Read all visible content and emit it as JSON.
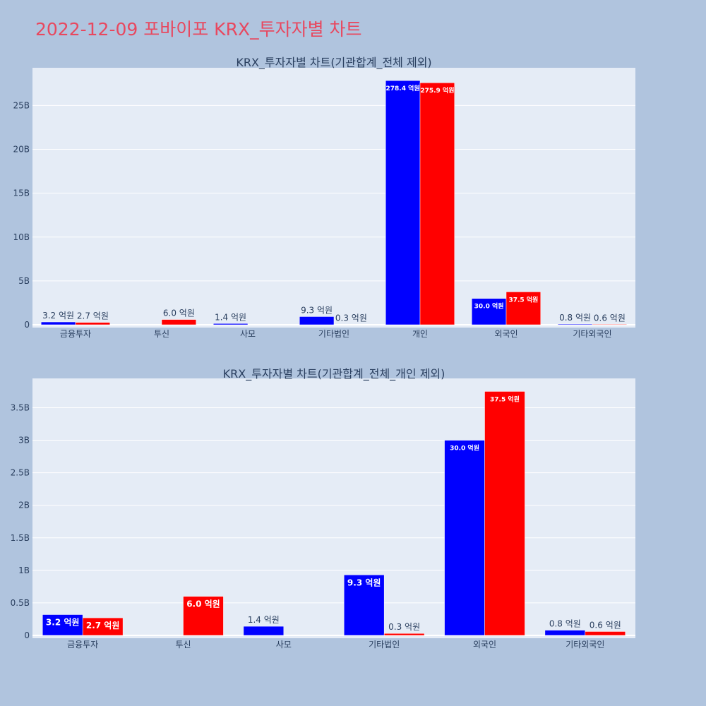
{
  "page": {
    "title": "2022-12-09 포바이포 KRX_투자자별 차트"
  },
  "colors": {
    "background": "#b0c4de",
    "plot_bg": "#e5ecf6",
    "title": "#e8485f",
    "series_a": "#0000ff",
    "series_b": "#ff0000"
  },
  "chart_data": [
    {
      "type": "bar",
      "title": "KRX_투자자별 차트(기관합계_전체 제외)",
      "categories": [
        "금융투자",
        "투신",
        "사모",
        "기타법인",
        "개인",
        "외국인",
        "기타외국인"
      ],
      "series": [
        {
          "color": "#0000ff",
          "values": [
            320000000,
            0,
            140000000,
            930000000,
            27840000000,
            3000000000,
            80000000
          ],
          "labels": [
            "3.2 억원",
            "",
            "1.4 억원",
            "9.3 억원",
            "278.4 억원",
            "30.0 억원",
            "0.8 억원"
          ]
        },
        {
          "color": "#ff0000",
          "values": [
            270000000,
            600000000,
            0,
            30000000,
            27590000000,
            3750000000,
            60000000
          ],
          "labels": [
            "2.7 억원",
            "6.0 억원",
            "",
            "0.3 억원",
            "275.9 억원",
            "37.5 억원",
            "0.6 억원"
          ]
        }
      ],
      "yticks": [
        0,
        5000000000,
        10000000000,
        15000000000,
        20000000000,
        25000000000
      ],
      "ytick_labels": [
        "0",
        "5B",
        "10B",
        "15B",
        "20B",
        "25B"
      ],
      "ylim": [
        0,
        29300000000
      ],
      "grid": true,
      "legend": "none"
    },
    {
      "type": "bar",
      "title": "KRX_투자자별 차트(기관합계_전체_개인 제외)",
      "categories": [
        "금융투자",
        "투신",
        "사모",
        "기타법인",
        "외국인",
        "기타외국인"
      ],
      "series": [
        {
          "color": "#0000ff",
          "values": [
            320000000,
            0,
            140000000,
            930000000,
            3000000000,
            80000000
          ],
          "labels": [
            "3.2 억원",
            "",
            "1.4 억원",
            "9.3 억원",
            "30.0 억원",
            "0.8 억원"
          ]
        },
        {
          "color": "#ff0000",
          "values": [
            270000000,
            600000000,
            0,
            30000000,
            3750000000,
            60000000
          ],
          "labels": [
            "2.7 억원",
            "6.0 억원",
            "",
            "0.3 억원",
            "37.5 억원",
            "0.6 억원"
          ]
        }
      ],
      "yticks": [
        0,
        500000000,
        1000000000,
        1500000000,
        2000000000,
        2500000000,
        3000000000,
        3500000000
      ],
      "ytick_labels": [
        "0",
        "0.5B",
        "1B",
        "1.5B",
        "2B",
        "2.5B",
        "3B",
        "3.5B"
      ],
      "ylim": [
        0,
        3950000000
      ],
      "grid": true,
      "legend": "none"
    }
  ]
}
